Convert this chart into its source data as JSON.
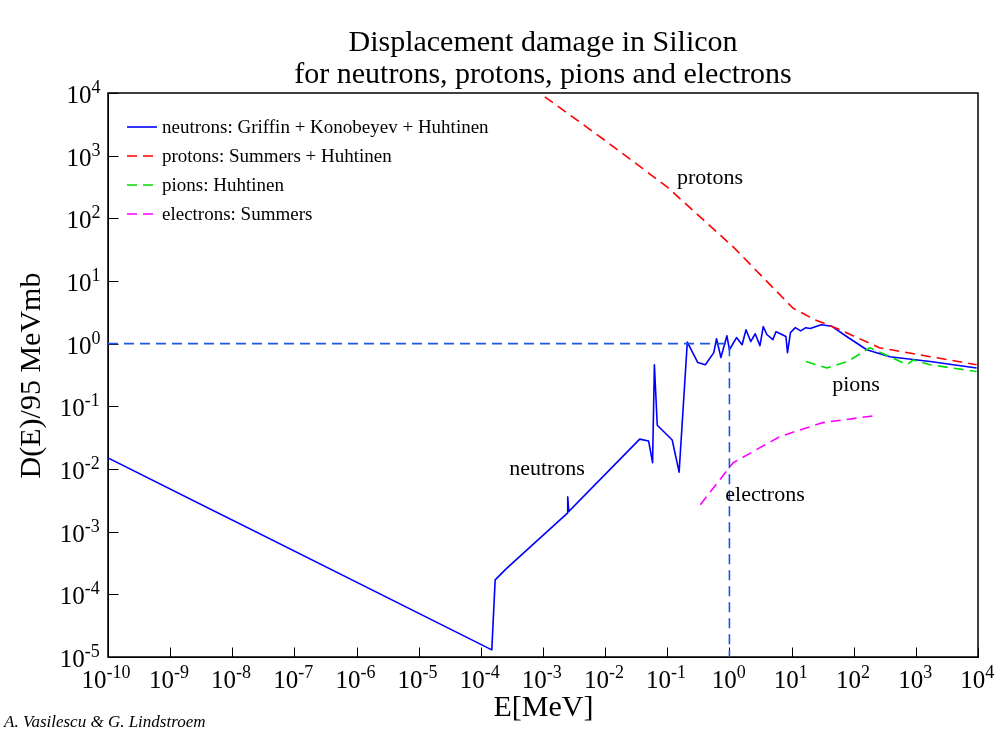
{
  "chart_data": {
    "type": "line",
    "title": "Displacement damage in Silicon",
    "subtitle": "for neutrons, protons, pions and electrons",
    "xlabel": "E[MeV]",
    "ylabel": "D(E)/95 MeVmb",
    "log": "xy",
    "grid": false,
    "legend": "top left",
    "xlim": [
      1e-10,
      10000
    ],
    "ylim": [
      1e-05,
      10000
    ],
    "xticks": [
      {
        "value": 1e-10,
        "label": "10$^{-10}$"
      },
      {
        "value": 1e-09,
        "label": "10$^{-9}$"
      },
      {
        "value": 1e-08,
        "label": "10$^{-8}$"
      },
      {
        "value": 1e-07,
        "label": "10$^{-7}$"
      },
      {
        "value": 1e-06,
        "label": "10$^{-6}$"
      },
      {
        "value": 1e-05,
        "label": "10$^{-5}$"
      },
      {
        "value": 0.0001,
        "label": "10$^{-4}$"
      },
      {
        "value": 0.001,
        "label": "10$^{-3}$"
      },
      {
        "value": 0.01,
        "label": "10$^{-2}$"
      },
      {
        "value": 0.1,
        "label": "10$^{-1}$"
      },
      {
        "value": 1,
        "label": "10$^{0}$"
      },
      {
        "value": 10,
        "label": "10$^{1}$"
      },
      {
        "value": 100,
        "label": "10$^{2}$"
      },
      {
        "value": 1000,
        "label": "10$^{3}$"
      },
      {
        "value": 10000,
        "label": "10$^{4}$"
      }
    ],
    "yticks": [
      {
        "value": 1e-05,
        "label": "10$^{-5}$"
      },
      {
        "value": 0.0001,
        "label": "10$^{-4}$"
      },
      {
        "value": 0.001,
        "label": "10$^{-3}$"
      },
      {
        "value": 0.01,
        "label": "10$^{-2}$"
      },
      {
        "value": 0.1,
        "label": "10$^{-1}$"
      },
      {
        "value": 1,
        "label": "10$^{0}$"
      },
      {
        "value": 10,
        "label": "10$^{1}$"
      },
      {
        "value": 100,
        "label": "10$^{2}$"
      },
      {
        "value": 1000,
        "label": "10$^{3}$"
      },
      {
        "value": 10000,
        "label": "10$^{4}$"
      }
    ],
    "series": [
      {
        "name": "neutrons: Griffin + Konobeyev + Huhtinen",
        "color": "#0000ff",
        "line_style": "solid",
        "x": [
          1e-10,
          0.00015,
          0.00017,
          0.00025,
          0.0025,
          0.0025,
          0.0026,
          0.036,
          0.05,
          0.058,
          0.062,
          0.069,
          0.12,
          0.155,
          0.21,
          0.31,
          0.41,
          0.56,
          0.62,
          0.73,
          0.91,
          1.0,
          1.3,
          1.6,
          1.85,
          2.2,
          2.6,
          3.1,
          3.5,
          4.0,
          5.0,
          5.6,
          6.6,
          8.1,
          8.6,
          9.6,
          11.5,
          14,
          17,
          20,
          30,
          44,
          77,
          162,
          380,
          1700,
          9500
        ],
        "values": [
          0.015,
          1.3e-05,
          0.00017,
          0.00025,
          0.002,
          0.0036,
          0.0021,
          0.03,
          0.028,
          0.0126,
          0.46,
          0.05,
          0.029,
          0.0089,
          1.06,
          0.5,
          0.46,
          0.72,
          1.2,
          0.6,
          1.34,
          0.8,
          1.25,
          0.96,
          1.67,
          1.08,
          1.44,
          0.93,
          1.87,
          1.4,
          1.16,
          1.55,
          1.44,
          1.3,
          0.72,
          1.5,
          1.8,
          1.6,
          1.8,
          1.75,
          2.0,
          1.9,
          1.3,
          0.8,
          0.62,
          0.52,
          0.41
        ]
      },
      {
        "name": "protons: Summers + Huhtinen",
        "color": "#ff0000",
        "line_style": "dashed",
        "x": [
          0.00107,
          0.0107,
          0.1,
          1.15,
          10.5,
          24,
          60,
          260,
          1700,
          9500
        ],
        "values": [
          8700,
          1660,
          316,
          35,
          3.7,
          2.4,
          1.67,
          0.86,
          0.62,
          0.46
        ]
      },
      {
        "name": "pions: Huhtinen",
        "color": "#00dd00",
        "line_style": "dashed",
        "x": [
          17,
          37,
          80,
          182,
          380,
          720,
          910,
          1700,
          9500
        ],
        "values": [
          0.52,
          0.41,
          0.52,
          0.86,
          0.62,
          0.46,
          0.55,
          0.46,
          0.36
        ]
      },
      {
        "name": "electrons: Summers",
        "color": "#ff00ff",
        "line_style": "dashed",
        "x": [
          0.34,
          1.15,
          6.5,
          32,
          220
        ],
        "values": [
          0.0027,
          0.0126,
          0.033,
          0.055,
          0.071
        ]
      },
      {
        "color": "#1a56e8",
        "line_style": "dashed",
        "x": [
          1e-10,
          1,
          1
        ],
        "values": [
          1,
          1,
          1e-05
        ]
      }
    ],
    "annotations": [
      "protons",
      "neutrons",
      "pions",
      "electrons",
      "A. Vasilescu & G. Lindstroem"
    ]
  }
}
